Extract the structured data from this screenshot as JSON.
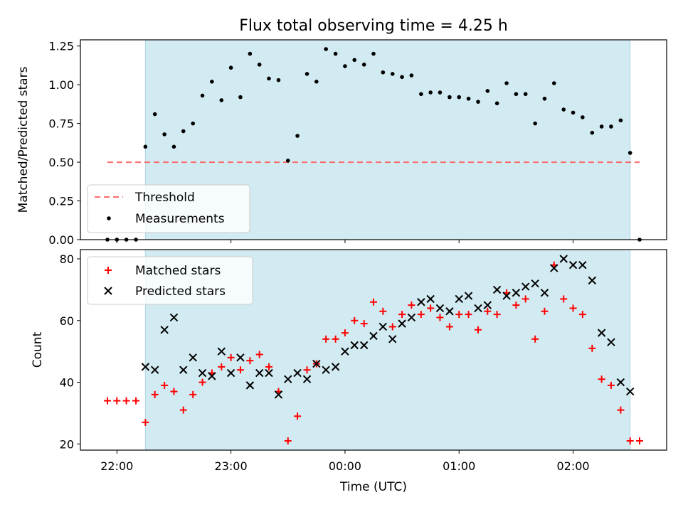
{
  "figure": {
    "title": "Flux total observing time = 4.25 h",
    "xlabel": "Time (UTC)",
    "xticks": [
      "22:00",
      "23:00",
      "00:00",
      "01:00",
      "02:00"
    ],
    "shade_color": "#add8e6",
    "colors": {
      "threshold": "#ff6b6b",
      "measurements": "#000000",
      "matched": "#ff0000",
      "predicted": "#000000"
    }
  },
  "chart_data": [
    {
      "type": "scatter",
      "ylabel": "Matched/Predicted stars",
      "ylim": [
        0,
        1.29
      ],
      "yticks": [
        "0.00",
        "0.25",
        "0.50",
        "0.75",
        "1.00",
        "1.25"
      ],
      "x_axis": "time in hours since 22:00 UTC (tick labels 22:00 to 02:00)",
      "xlim": [
        -0.32,
        4.82
      ],
      "observing_window": [
        0.25,
        4.5
      ],
      "threshold": {
        "label": "Threshold",
        "value": 0.5,
        "x_range": [
          -0.083,
          4.583
        ]
      },
      "legend": {
        "position": "lower left",
        "entries": [
          "Threshold",
          "Measurements"
        ]
      },
      "series": [
        {
          "name": "Measurements",
          "points": [
            [
              -0.083,
              0.0
            ],
            [
              0.0,
              0.0
            ],
            [
              0.083,
              0.0
            ],
            [
              0.167,
              0.0
            ],
            [
              0.25,
              0.6
            ],
            [
              0.333,
              0.81
            ],
            [
              0.417,
              0.68
            ],
            [
              0.5,
              0.6
            ],
            [
              0.583,
              0.7
            ],
            [
              0.667,
              0.75
            ],
            [
              0.75,
              0.93
            ],
            [
              0.833,
              1.02
            ],
            [
              0.917,
              0.9
            ],
            [
              1.0,
              1.11
            ],
            [
              1.083,
              0.92
            ],
            [
              1.167,
              1.2
            ],
            [
              1.25,
              1.13
            ],
            [
              1.333,
              1.04
            ],
            [
              1.417,
              1.03
            ],
            [
              1.5,
              0.51
            ],
            [
              1.583,
              0.67
            ],
            [
              1.667,
              1.07
            ],
            [
              1.75,
              1.02
            ],
            [
              1.833,
              1.23
            ],
            [
              1.917,
              1.2
            ],
            [
              2.0,
              1.12
            ],
            [
              2.083,
              1.16
            ],
            [
              2.167,
              1.13
            ],
            [
              2.25,
              1.2
            ],
            [
              2.333,
              1.08
            ],
            [
              2.417,
              1.07
            ],
            [
              2.5,
              1.05
            ],
            [
              2.583,
              1.06
            ],
            [
              2.667,
              0.94
            ],
            [
              2.75,
              0.95
            ],
            [
              2.833,
              0.95
            ],
            [
              2.917,
              0.92
            ],
            [
              3.0,
              0.92
            ],
            [
              3.083,
              0.91
            ],
            [
              3.167,
              0.89
            ],
            [
              3.25,
              0.96
            ],
            [
              3.333,
              0.88
            ],
            [
              3.417,
              1.01
            ],
            [
              3.5,
              0.94
            ],
            [
              3.583,
              0.94
            ],
            [
              3.667,
              0.75
            ],
            [
              3.75,
              0.91
            ],
            [
              3.833,
              1.01
            ],
            [
              3.917,
              0.84
            ],
            [
              4.0,
              0.82
            ],
            [
              4.083,
              0.79
            ],
            [
              4.167,
              0.69
            ],
            [
              4.25,
              0.73
            ],
            [
              4.333,
              0.73
            ],
            [
              4.417,
              0.77
            ],
            [
              4.5,
              0.56
            ],
            [
              4.583,
              0.0
            ]
          ]
        }
      ]
    },
    {
      "type": "scatter",
      "ylabel": "Count",
      "ylim": [
        18,
        83
      ],
      "yticks": [
        "20",
        "40",
        "60",
        "80"
      ],
      "x_axis": "time in hours since 22:00 UTC (tick labels 22:00 to 02:00)",
      "xlim": [
        -0.32,
        4.82
      ],
      "observing_window": [
        0.25,
        4.5
      ],
      "legend": {
        "position": "upper left",
        "entries": [
          "Matched stars",
          "Predicted stars"
        ]
      },
      "series": [
        {
          "name": "Matched stars",
          "points": [
            [
              -0.083,
              34
            ],
            [
              0.0,
              34
            ],
            [
              0.083,
              34
            ],
            [
              0.167,
              34
            ],
            [
              0.25,
              27
            ],
            [
              0.333,
              36
            ],
            [
              0.417,
              39
            ],
            [
              0.5,
              37
            ],
            [
              0.583,
              31
            ],
            [
              0.667,
              36
            ],
            [
              0.75,
              40
            ],
            [
              0.833,
              43
            ],
            [
              0.917,
              45
            ],
            [
              1.0,
              48
            ],
            [
              1.083,
              44
            ],
            [
              1.167,
              47
            ],
            [
              1.25,
              49
            ],
            [
              1.333,
              45
            ],
            [
              1.417,
              37
            ],
            [
              1.5,
              21
            ],
            [
              1.583,
              29
            ],
            [
              1.667,
              44
            ],
            [
              1.75,
              46
            ],
            [
              1.833,
              54
            ],
            [
              1.917,
              54
            ],
            [
              2.0,
              56
            ],
            [
              2.083,
              60
            ],
            [
              2.167,
              59
            ],
            [
              2.25,
              66
            ],
            [
              2.333,
              63
            ],
            [
              2.417,
              58
            ],
            [
              2.5,
              62
            ],
            [
              2.583,
              65
            ],
            [
              2.667,
              62
            ],
            [
              2.75,
              64
            ],
            [
              2.833,
              61
            ],
            [
              2.917,
              58
            ],
            [
              3.0,
              62
            ],
            [
              3.083,
              62
            ],
            [
              3.167,
              57
            ],
            [
              3.25,
              63
            ],
            [
              3.333,
              62
            ],
            [
              3.417,
              69
            ],
            [
              3.5,
              65
            ],
            [
              3.583,
              67
            ],
            [
              3.667,
              54
            ],
            [
              3.75,
              63
            ],
            [
              3.833,
              78
            ],
            [
              3.917,
              67
            ],
            [
              4.0,
              64
            ],
            [
              4.083,
              62
            ],
            [
              4.167,
              51
            ],
            [
              4.25,
              41
            ],
            [
              4.333,
              39
            ],
            [
              4.417,
              31
            ],
            [
              4.5,
              21
            ],
            [
              4.583,
              21
            ]
          ]
        },
        {
          "name": "Predicted stars",
          "points": [
            [
              0.25,
              45
            ],
            [
              0.333,
              44
            ],
            [
              0.417,
              57
            ],
            [
              0.5,
              61
            ],
            [
              0.583,
              44
            ],
            [
              0.667,
              48
            ],
            [
              0.75,
              43
            ],
            [
              0.833,
              42
            ],
            [
              0.917,
              50
            ],
            [
              1.0,
              43
            ],
            [
              1.083,
              48
            ],
            [
              1.167,
              39
            ],
            [
              1.25,
              43
            ],
            [
              1.333,
              43
            ],
            [
              1.417,
              36
            ],
            [
              1.5,
              41
            ],
            [
              1.583,
              43
            ],
            [
              1.667,
              41
            ],
            [
              1.75,
              46
            ],
            [
              1.833,
              44
            ],
            [
              1.917,
              45
            ],
            [
              2.0,
              50
            ],
            [
              2.083,
              52
            ],
            [
              2.167,
              52
            ],
            [
              2.25,
              55
            ],
            [
              2.333,
              58
            ],
            [
              2.417,
              54
            ],
            [
              2.5,
              59
            ],
            [
              2.583,
              61
            ],
            [
              2.667,
              66
            ],
            [
              2.75,
              67
            ],
            [
              2.833,
              64
            ],
            [
              2.917,
              63
            ],
            [
              3.0,
              67
            ],
            [
              3.083,
              68
            ],
            [
              3.167,
              64
            ],
            [
              3.25,
              65
            ],
            [
              3.333,
              70
            ],
            [
              3.417,
              68
            ],
            [
              3.5,
              69
            ],
            [
              3.583,
              71
            ],
            [
              3.667,
              72
            ],
            [
              3.75,
              69
            ],
            [
              3.833,
              77
            ],
            [
              3.917,
              80
            ],
            [
              4.0,
              78
            ],
            [
              4.083,
              78
            ],
            [
              4.167,
              73
            ],
            [
              4.25,
              56
            ],
            [
              4.333,
              53
            ],
            [
              4.417,
              40
            ],
            [
              4.5,
              37
            ]
          ]
        }
      ]
    }
  ]
}
